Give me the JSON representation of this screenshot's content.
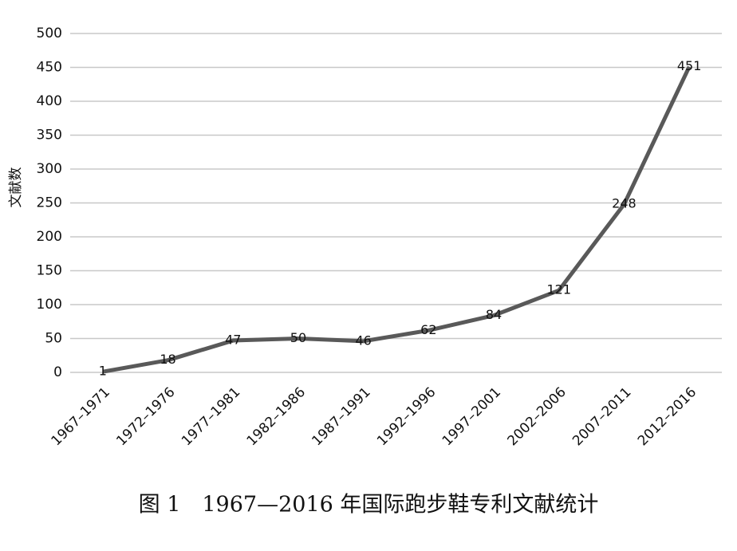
{
  "chart_data": {
    "type": "line",
    "title": "图 1　1967—2016 年国际跑步鞋专利文献统计",
    "y_label": "文献数",
    "categories": [
      "1967–1971",
      "1972–1976",
      "1977–1981",
      "1982–1986",
      "1987–1991",
      "1992–1996",
      "1997–2001",
      "2002–2006",
      "2007–2011",
      "2012–2016"
    ],
    "values": [
      1,
      18,
      47,
      50,
      46,
      62,
      84,
      121,
      248,
      451
    ],
    "color": "#595959",
    "ylim": [
      0,
      500
    ],
    "yticks": [
      0,
      50,
      100,
      150,
      200,
      250,
      300,
      350,
      400,
      450,
      500
    ],
    "grid": true
  }
}
